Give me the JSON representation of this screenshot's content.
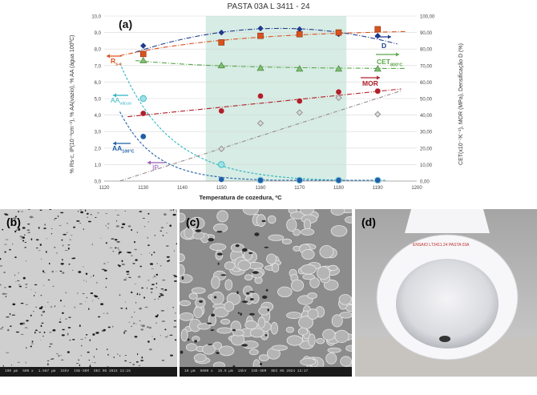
{
  "figure": {
    "panels": {
      "a": "(a)",
      "b": "(b)",
      "c": "(c)",
      "d": "(d)"
    },
    "bowl_text": "ENSAIO LT3411.24 PASTA 03A",
    "micrograph_b_info": [
      "100 µm",
      "500 x",
      "1.587 µm",
      "15kV",
      "ISE-SEM",
      "DEC 05 2024 13:15"
    ],
    "micrograph_c_info": [
      "10 µm",
      "5000 x",
      "15.9 µm",
      "15kV",
      "ISE-SEM",
      "DEC 05 2024 13:17"
    ]
  },
  "colors": {
    "D": "#1f3b8c",
    "Rsc": "#d9531e",
    "CET": "#5aa84a",
    "MOR": "#b0202a",
    "AA_vacuum": "#2eb5c2",
    "AA_100C": "#1f5fa8",
    "IP": "#9a8c8c",
    "band": "#d6ece4"
  },
  "chart_data": {
    "type": "line",
    "title": "PASTA 03A  L 3411 - 24",
    "xlabel": "Temperatura de cozedura, ºC",
    "ylabel_left": "% Rs-c, IP(10⁻³cm⁻¹), % AA(vazio), % AA (água 100ºC)",
    "ylabel_right": "CET(x10⁻⁷K⁻¹), MOR (MPa), Densificação D (%)",
    "xlim": [
      1120,
      1200
    ],
    "ylim_left": [
      0,
      10
    ],
    "ylim_right": [
      0,
      100
    ],
    "x_ticks": [
      "1120",
      "1130",
      "1140",
      "1150",
      "1160",
      "1170",
      "1180",
      "1190",
      "1200"
    ],
    "y_ticks_left": [
      "0,0",
      "1,0",
      "2,0",
      "3,0",
      "4,0",
      "5,0",
      "6,0",
      "7,0",
      "8,0",
      "9,0",
      "10,0"
    ],
    "y_ticks_right": [
      "0,00",
      "10,00",
      "20,00",
      "30,00",
      "40,00",
      "50,00",
      "60,00",
      "70,00",
      "80,00",
      "90,00",
      "100,00"
    ],
    "highlight_band_x": [
      1146,
      1182
    ],
    "series": [
      {
        "name": "D",
        "axis": "right",
        "marker": "diamond",
        "x": [
          1130,
          1150,
          1160,
          1170,
          1180,
          1190
        ],
        "values": [
          82,
          90,
          92.5,
          92,
          89,
          88
        ]
      },
      {
        "name": "Rs-c",
        "axis": "left",
        "marker": "square",
        "x": [
          1130,
          1150,
          1160,
          1170,
          1180,
          1190
        ],
        "values": [
          7.7,
          8.4,
          8.8,
          8.9,
          9.0,
          9.2
        ]
      },
      {
        "name": "CET800°C",
        "axis": "right",
        "marker": "triangle",
        "x": [
          1130,
          1150,
          1160,
          1170,
          1180,
          1190
        ],
        "values": [
          73,
          70,
          68.5,
          68,
          68,
          68
        ]
      },
      {
        "name": "MOR",
        "axis": "right",
        "marker": "circle",
        "x": [
          1130,
          1150,
          1160,
          1170,
          1180,
          1190
        ],
        "values": [
          41,
          42.5,
          51.5,
          48.5,
          54,
          54.5
        ]
      },
      {
        "name": "AAvacuum",
        "axis": "left",
        "marker": "circle-open",
        "x": [
          1130,
          1150,
          1160,
          1170,
          1180,
          1190
        ],
        "values": [
          5.0,
          1.0,
          0.05,
          0.05,
          0.05,
          0.05
        ]
      },
      {
        "name": "AA100°C",
        "axis": "left",
        "marker": "circle",
        "x": [
          1130,
          1150,
          1160,
          1170,
          1180,
          1190
        ],
        "values": [
          2.7,
          0.1,
          0.05,
          0.05,
          0.05,
          0.05
        ]
      },
      {
        "name": "IP",
        "axis": "left",
        "marker": "diamond-open",
        "x": [
          1150,
          1160,
          1170,
          1180,
          1190
        ],
        "values": [
          1.95,
          3.5,
          4.15,
          5.05,
          4.05
        ]
      }
    ],
    "annotations": [
      {
        "series": "D",
        "text": "D",
        "sub": ""
      },
      {
        "series": "Rs-c",
        "text": "R",
        "sub": "s-c"
      },
      {
        "series": "CET800°C",
        "text": "CET",
        "sub": "800°C"
      },
      {
        "series": "MOR",
        "text": "MOR",
        "sub": ""
      },
      {
        "series": "AAvacuum",
        "text": "AA",
        "sub": "vácuo"
      },
      {
        "series": "AA100°C",
        "text": "AA",
        "sub": "100°C"
      },
      {
        "series": "IP",
        "text": "IP",
        "sub": ""
      }
    ]
  }
}
